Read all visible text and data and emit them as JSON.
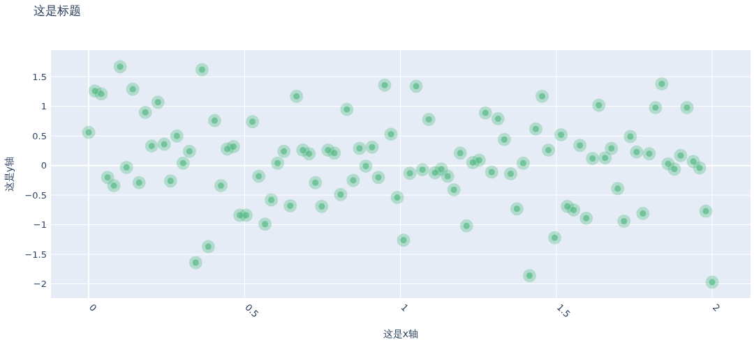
{
  "chart_data": {
    "type": "scatter",
    "title": "这是标题",
    "xlabel": "这是x轴",
    "ylabel": "这是y轴",
    "color": "#3cb371",
    "marker": "circle",
    "grid": true,
    "xlim": [
      -0.121,
      2.123
    ],
    "ylim": [
      -2.24,
      1.95
    ],
    "xticks": [
      0,
      0.5,
      1,
      1.5,
      2
    ],
    "yticks": [
      {
        "value": -2,
        "label": "−2"
      },
      {
        "value": -1.5,
        "label": "−1.5"
      },
      {
        "value": -1,
        "label": "−1"
      },
      {
        "value": -0.5,
        "label": "−0.5"
      },
      0,
      0.5,
      1,
      1.5
    ],
    "x": [
      0,
      0.0202,
      0.0404,
      0.0606,
      0.0808,
      0.101,
      0.1212,
      0.1414,
      0.1616,
      0.1818,
      0.202,
      0.2222,
      0.2424,
      0.2626,
      0.2828,
      0.303,
      0.3232,
      0.3434,
      0.3636,
      0.3838,
      0.404,
      0.4242,
      0.4444,
      0.4646,
      0.4848,
      0.5051,
      0.5253,
      0.5455,
      0.5657,
      0.5859,
      0.6061,
      0.6263,
      0.6465,
      0.6667,
      0.6869,
      0.7071,
      0.7273,
      0.7475,
      0.7677,
      0.7879,
      0.8081,
      0.8283,
      0.8485,
      0.8687,
      0.8889,
      0.9091,
      0.9293,
      0.9495,
      0.9697,
      0.9899,
      1.0101,
      1.0303,
      1.0505,
      1.0707,
      1.0909,
      1.1111,
      1.1313,
      1.1515,
      1.1717,
      1.1919,
      1.2121,
      1.2323,
      1.2525,
      1.2727,
      1.2929,
      1.3131,
      1.3333,
      1.3535,
      1.3737,
      1.3939,
      1.4141,
      1.4343,
      1.4545,
      1.4747,
      1.4949,
      1.5152,
      1.5354,
      1.5556,
      1.5758,
      1.596,
      1.6162,
      1.6364,
      1.6566,
      1.6768,
      1.697,
      1.7172,
      1.7374,
      1.7576,
      1.7778,
      1.798,
      1.8182,
      1.8384,
      1.8586,
      1.8788,
      1.899,
      1.9192,
      1.9394,
      1.9596,
      1.9798,
      2
    ],
    "values": [
      0.56,
      1.26,
      1.21,
      -0.2,
      -0.34,
      1.67,
      -0.03,
      1.29,
      -0.29,
      0.9,
      0.33,
      1.07,
      0.36,
      -0.26,
      0.5,
      0.04,
      0.24,
      -1.64,
      1.62,
      -1.37,
      0.76,
      -0.34,
      0.28,
      0.32,
      -0.84,
      -0.84,
      0.74,
      -0.18,
      -0.99,
      -0.58,
      0.04,
      0.24,
      -0.68,
      1.17,
      0.26,
      0.2,
      -0.29,
      -0.69,
      0.26,
      0.21,
      -0.49,
      0.95,
      -0.25,
      0.29,
      -0.01,
      0.31,
      -0.2,
      1.36,
      0.53,
      -0.54,
      -1.26,
      -0.13,
      1.34,
      -0.07,
      0.78,
      -0.12,
      -0.06,
      -0.18,
      -0.41,
      0.21,
      -1.02,
      0.05,
      0.09,
      0.89,
      -0.11,
      0.79,
      0.44,
      -0.14,
      -0.73,
      0.04,
      -1.86,
      0.62,
      1.17,
      0.26,
      -1.22,
      0.52,
      -0.69,
      -0.75,
      0.34,
      -0.89,
      0.12,
      1.02,
      0.13,
      0.29,
      -0.39,
      -0.94,
      0.49,
      0.23,
      -0.81,
      0.2,
      0.98,
      1.38,
      0.03,
      -0.06,
      0.17,
      0.98,
      0.07,
      -0.04,
      -0.77,
      -1.97
    ]
  }
}
